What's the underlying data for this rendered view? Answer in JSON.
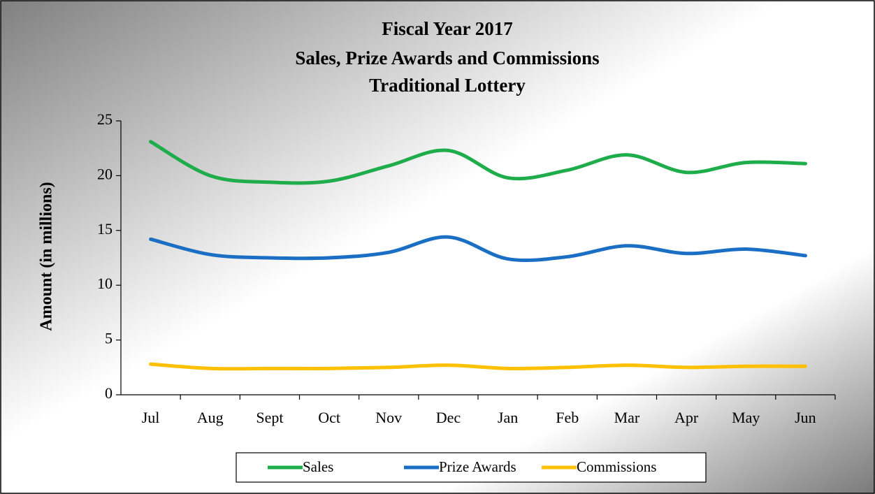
{
  "chart_data": {
    "type": "line",
    "title": [
      "Fiscal Year 2017",
      "Sales, Prize Awards and Commissions",
      "Traditional Lottery"
    ],
    "y_label": "Amount (in millions)",
    "categories": [
      "Jul",
      "Aug",
      "Sept",
      "Oct",
      "Nov",
      "Dec",
      "Jan",
      "Feb",
      "Mar",
      "Apr",
      "May",
      "Jun"
    ],
    "series": [
      {
        "name": "Sales",
        "color": "#1fad4b",
        "values": [
          23.1,
          20.0,
          19.4,
          19.5,
          20.9,
          22.3,
          19.8,
          20.5,
          21.9,
          20.3,
          21.2,
          21.1
        ]
      },
      {
        "name": "Prize Awards",
        "color": "#1a6fc4",
        "values": [
          14.2,
          12.8,
          12.5,
          12.5,
          13.0,
          14.4,
          12.4,
          12.6,
          13.6,
          12.9,
          13.3,
          12.7
        ]
      },
      {
        "name": "Commissions",
        "color": "#ffc000",
        "values": [
          2.8,
          2.4,
          2.4,
          2.4,
          2.5,
          2.7,
          2.4,
          2.5,
          2.7,
          2.5,
          2.6,
          2.6
        ]
      }
    ],
    "ylim": [
      0,
      25
    ],
    "yticks": [
      0,
      5,
      10,
      15,
      20,
      25
    ],
    "grid": false,
    "legend": "bottom"
  }
}
